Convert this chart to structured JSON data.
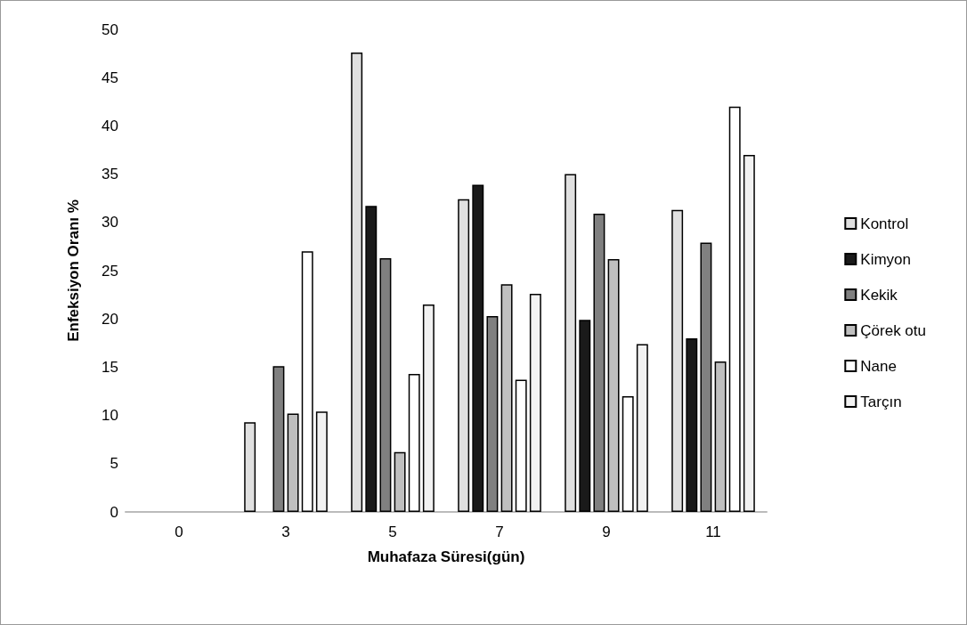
{
  "chart_data": {
    "type": "bar",
    "xlabel": "Muhafaza Süresi(gün)",
    "ylabel": "Enfeksiyon Oranı %",
    "categories": [
      "0",
      "3",
      "5",
      "7",
      "9",
      "11"
    ],
    "series": [
      {
        "name": "Kontrol",
        "color": "#e0e0e0",
        "values": [
          0,
          9.3,
          47.6,
          32.4,
          35.0,
          31.3
        ]
      },
      {
        "name": "Kimyon",
        "color": "#1a1a1a",
        "values": [
          0,
          0,
          31.7,
          33.9,
          19.9,
          18.0
        ]
      },
      {
        "name": "Kekik",
        "color": "#808080",
        "values": [
          0,
          15.1,
          26.3,
          20.3,
          30.9,
          27.9
        ]
      },
      {
        "name": "Çörek otu",
        "color": "#bfbfbf",
        "values": [
          0,
          10.2,
          6.2,
          23.6,
          26.2,
          15.6
        ]
      },
      {
        "name": "Nane",
        "color": "#ffffff",
        "values": [
          0,
          27.0,
          14.3,
          13.7,
          12.0,
          42.0
        ]
      },
      {
        "name": "Tarçın",
        "color": "#f2f2f2",
        "values": [
          0,
          10.4,
          21.5,
          22.6,
          17.4,
          37.0
        ]
      }
    ],
    "ylim": [
      0,
      50
    ],
    "yticks": [
      0,
      5,
      10,
      15,
      20,
      25,
      30,
      35,
      40,
      45,
      50
    ],
    "grid": false,
    "legend": "right"
  }
}
